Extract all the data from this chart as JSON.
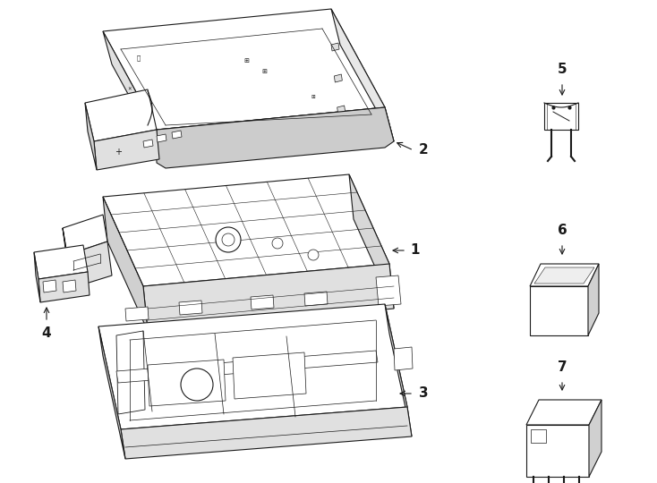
{
  "bg_color": "#ffffff",
  "line_color": "#1a1a1a",
  "lw": 0.8,
  "fig_width": 7.34,
  "fig_height": 5.4,
  "dpi": 100
}
